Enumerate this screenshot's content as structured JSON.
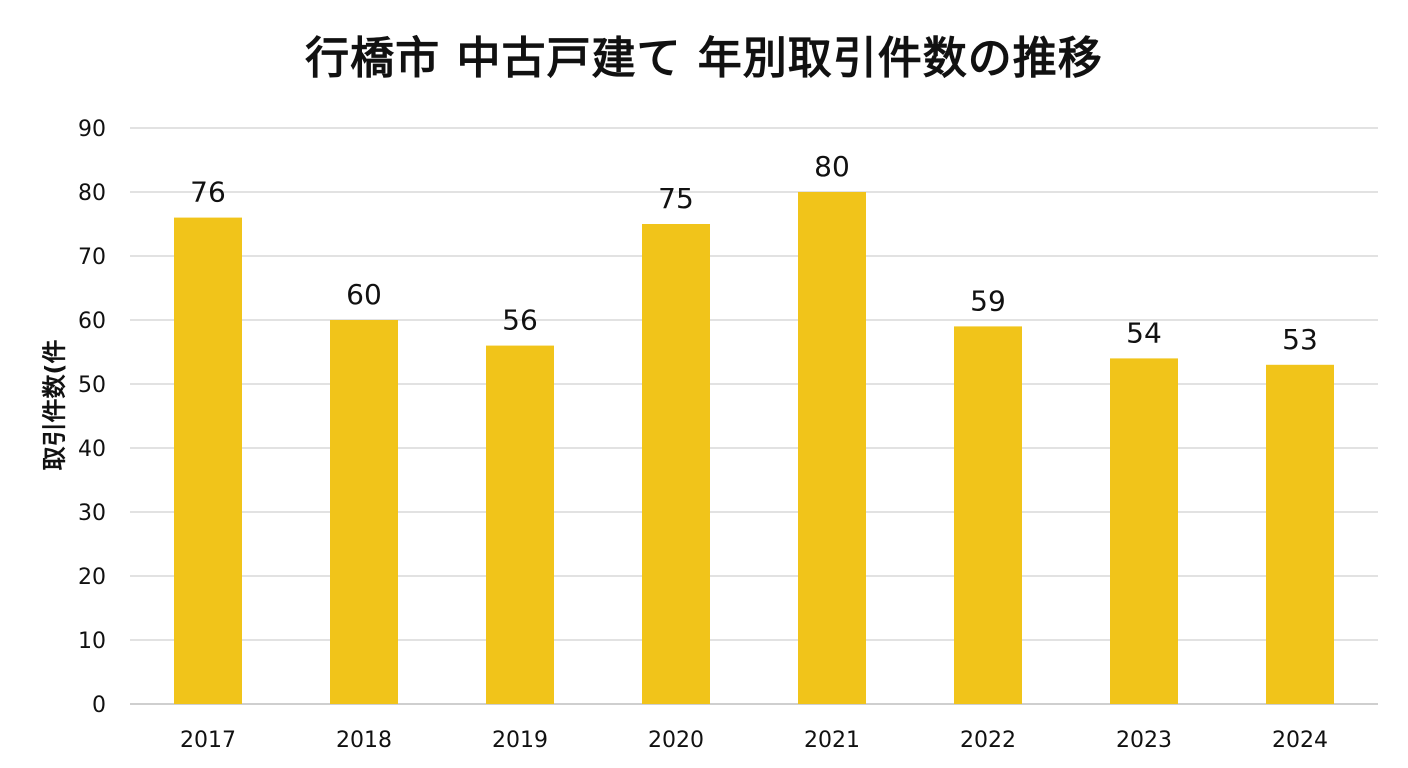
{
  "chart_data": {
    "type": "bar",
    "title": "行橋市 中古戸建て 年別取引件数の推移",
    "xlabel": "",
    "ylabel": "取引件数(件",
    "categories": [
      "2017",
      "2018",
      "2019",
      "2020",
      "2021",
      "2022",
      "2023",
      "2024"
    ],
    "values": [
      76,
      60,
      56,
      75,
      80,
      59,
      54,
      53
    ],
    "data_labels": [
      "76",
      "60",
      "56",
      "75",
      "80",
      "59",
      "54",
      "53"
    ],
    "y_ticks": [
      "0",
      "10",
      "20",
      "30",
      "40",
      "50",
      "60",
      "70",
      "80",
      "90"
    ],
    "ylim": [
      0,
      90
    ],
    "grid": true,
    "legend": "none",
    "bar_color": "#F1C41A",
    "grid_color": "#D9D9D9"
  }
}
